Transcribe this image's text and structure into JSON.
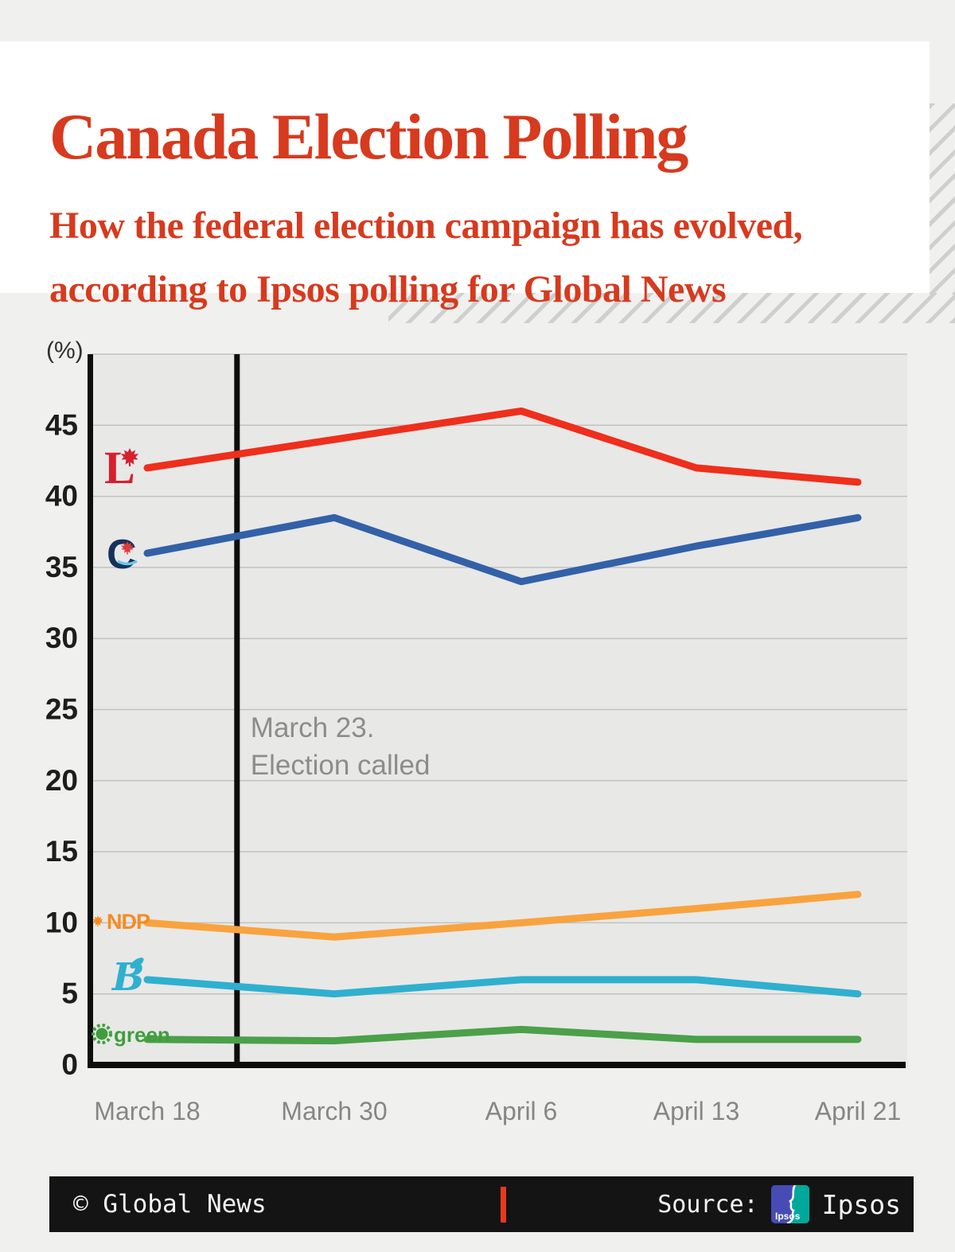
{
  "header": {
    "title": "Canada Election Polling",
    "subtitle_line1": "How the federal election campaign has evolved,",
    "subtitle_line2": "according to Ipsos polling for Global News"
  },
  "colors": {
    "accent_red": "#d73a1e",
    "liberal_logo_red": "#d71f2e",
    "conservative_navy": "#16325c",
    "conservative_leaf_red": "#e13a3a",
    "conservative_swoosh_blue": "#69c7ee",
    "ndp_orange": "#f68b1f",
    "bloc_cyan": "#2fb0cf",
    "green_party_green": "#3f9e3c",
    "footer_divider_red": "#e8391d",
    "plot_background": "#e8e8e7",
    "gridline": "#c2c2c1"
  },
  "chart_data": {
    "type": "line",
    "title": "Canada Election Polling",
    "unit_label": "(%)",
    "xlabel": "",
    "ylabel": "(%)",
    "ylim": [
      0,
      50
    ],
    "ytick_step": 5,
    "grid": true,
    "legend_position": "inline-left-of-lines",
    "categories": [
      "March 18",
      "March 30",
      "April 6",
      "April 13",
      "April 21"
    ],
    "series": [
      {
        "name": "Liberal",
        "color": "#ee2f1c",
        "values": [
          42,
          44,
          46,
          42,
          41
        ]
      },
      {
        "name": "Conservative",
        "color": "#3361a8",
        "values": [
          36,
          38.5,
          34,
          36.5,
          38.5
        ]
      },
      {
        "name": "NDP",
        "color": "#f8a33e",
        "values": [
          10,
          9,
          10,
          11,
          12
        ]
      },
      {
        "name": "Bloc Québécois",
        "color": "#2fb0cf",
        "values": [
          6,
          5,
          6,
          6,
          5
        ]
      },
      {
        "name": "Green",
        "color": "#4ba049",
        "values": [
          1.8,
          1.7,
          2.5,
          1.8,
          1.8
        ]
      }
    ],
    "annotation": {
      "line1": "March 23.",
      "line2": "Election called",
      "fraction_between_first_two_points": 0.48
    }
  },
  "footer": {
    "credit": "© Global News",
    "source_label": "Source:",
    "source_name": "Ipsos",
    "source_logo": "ipsos-logo"
  }
}
